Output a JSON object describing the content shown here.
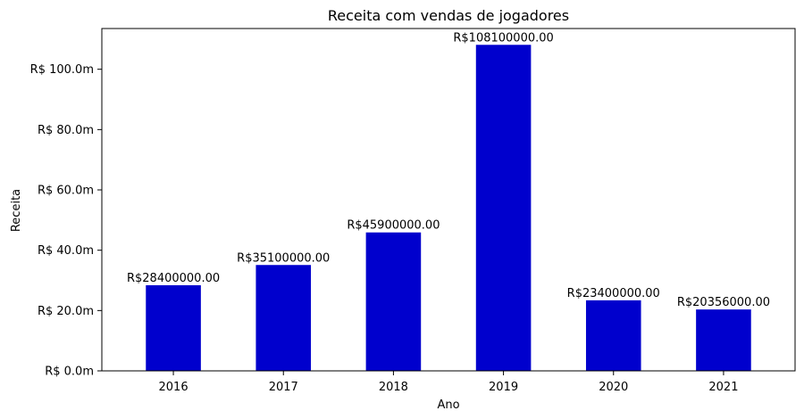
{
  "chart_data": {
    "type": "bar",
    "title": "Receita com vendas de jogadores",
    "xlabel": "Ano",
    "ylabel": "Receita",
    "categories": [
      "2016",
      "2017",
      "2018",
      "2019",
      "2020",
      "2021"
    ],
    "values": [
      28400000,
      35100000,
      45900000,
      108100000,
      23400000,
      20356000
    ],
    "data_labels": [
      "R$28400000.00",
      "R$35100000.00",
      "R$45900000.00",
      "R$108100000.00",
      "R$23400000.00",
      "R$20356000.00"
    ],
    "yticks": [
      0,
      20000000,
      40000000,
      60000000,
      80000000,
      100000000
    ],
    "ytick_labels": [
      "R$ 0.0m",
      "R$ 20.0m",
      "R$ 40.0m",
      "R$ 60.0m",
      "R$ 80.0m",
      "R$ 100.0m"
    ],
    "ylim": [
      0,
      113505000
    ],
    "bar_color": "#0000cd",
    "grid": false,
    "legend": "none"
  }
}
